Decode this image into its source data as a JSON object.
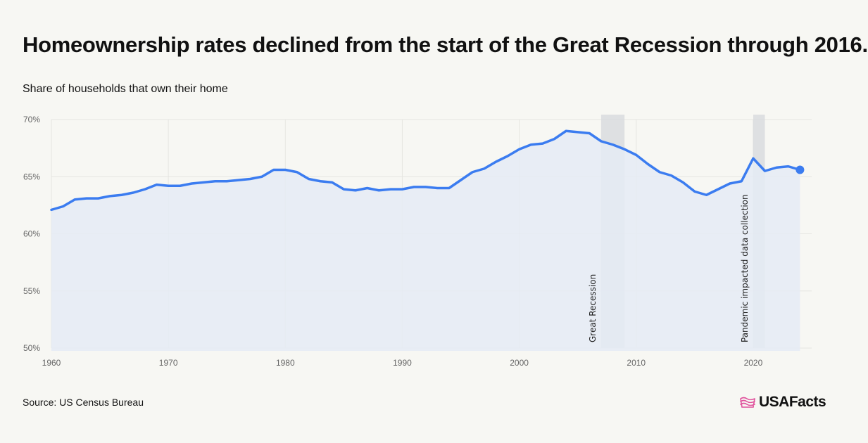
{
  "header": {
    "title": "Homeownership rates declined from the start of the Great Recession through 2016.",
    "subtitle": "Share of households that own their home"
  },
  "footer": {
    "source": "Source: US Census Bureau",
    "logo_text": "USAFacts"
  },
  "colors": {
    "line": "#3b7cf0",
    "area": "#e5ebf5",
    "band": "#d6d8dc",
    "grid": "#e6e6e2",
    "logo_flag": "#e0529c"
  },
  "chart_data": {
    "type": "line",
    "xlabel": "",
    "ylabel": "",
    "xlim": [
      1960,
      2025
    ],
    "ylim": [
      50,
      70
    ],
    "x_ticks": [
      1960,
      1970,
      1980,
      1990,
      2000,
      2010,
      2020
    ],
    "x_tick_labels": [
      "1960",
      "1970",
      "1980",
      "1990",
      "2000",
      "2010",
      "2020"
    ],
    "y_ticks": [
      50,
      55,
      60,
      65,
      70
    ],
    "y_tick_labels": [
      "50%",
      "55%",
      "60%",
      "65%",
      "70%"
    ],
    "grid": true,
    "x": [
      1960,
      1961,
      1962,
      1963,
      1964,
      1965,
      1966,
      1967,
      1968,
      1969,
      1970,
      1971,
      1972,
      1973,
      1974,
      1975,
      1976,
      1977,
      1978,
      1979,
      1980,
      1981,
      1982,
      1983,
      1984,
      1985,
      1986,
      1987,
      1988,
      1989,
      1990,
      1991,
      1992,
      1993,
      1994,
      1995,
      1996,
      1997,
      1998,
      1999,
      2000,
      2001,
      2002,
      2003,
      2004,
      2005,
      2006,
      2007,
      2008,
      2009,
      2010,
      2011,
      2012,
      2013,
      2014,
      2015,
      2016,
      2017,
      2018,
      2019,
      2020,
      2021,
      2022,
      2023,
      2024
    ],
    "y": [
      62.1,
      62.4,
      63.0,
      63.1,
      63.1,
      63.3,
      63.4,
      63.6,
      63.9,
      64.3,
      64.2,
      64.2,
      64.4,
      64.5,
      64.6,
      64.6,
      64.7,
      64.8,
      65.0,
      65.6,
      65.6,
      65.4,
      64.8,
      64.6,
      64.5,
      63.9,
      63.8,
      64.0,
      63.8,
      63.9,
      63.9,
      64.1,
      64.1,
      64.0,
      64.0,
      64.7,
      65.4,
      65.7,
      66.3,
      66.8,
      67.4,
      67.8,
      67.9,
      68.3,
      69.0,
      68.9,
      68.8,
      68.1,
      67.8,
      67.4,
      66.9,
      66.1,
      65.4,
      65.1,
      64.5,
      63.7,
      63.4,
      63.9,
      64.4,
      64.6,
      66.6,
      65.5,
      65.8,
      65.9,
      65.6
    ],
    "shaded_ranges": [
      {
        "label": "Great Recession",
        "start": 2007,
        "end": 2009
      },
      {
        "label": "Pandemic impacted data collection",
        "start": 2020,
        "end": 2021
      }
    ]
  }
}
